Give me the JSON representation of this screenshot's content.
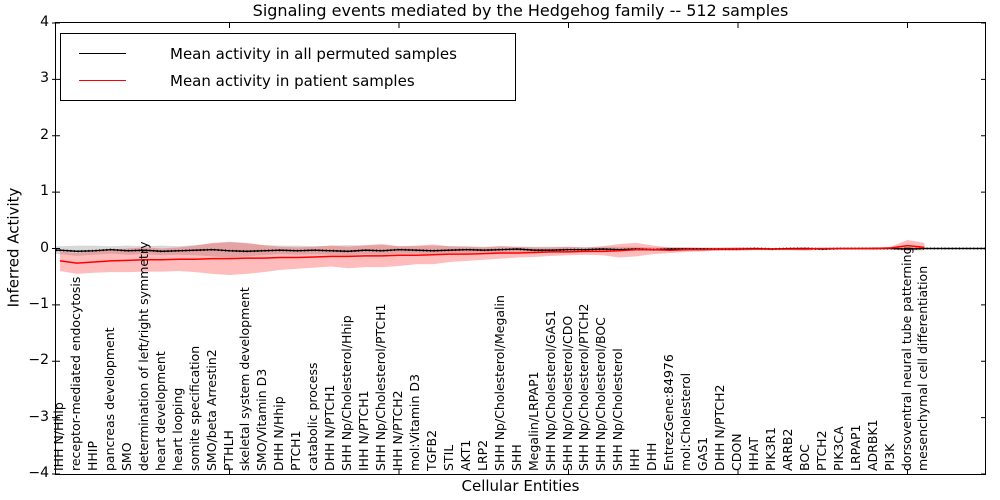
{
  "chart_data": {
    "type": "line",
    "title": "Signaling events mediated by the Hedgehog family -- 512 samples",
    "xlabel": "Cellular Entities",
    "ylabel": "Inferred Activity",
    "ylim": [
      -4,
      4
    ],
    "yticks": [
      4,
      3,
      2,
      1,
      0,
      -1,
      -2,
      -3,
      -4
    ],
    "xtick_marks_at_indices": [
      10,
      20,
      30,
      40,
      50
    ],
    "grid": false,
    "legend_position": "upper left",
    "zero_reference_line": {
      "y": 0,
      "style": "dotted",
      "color": "#000000"
    },
    "categories": [
      "IHH N/Hhip",
      "receptor-mediated endocytosis",
      "HHIP",
      "pancreas development",
      "SMO",
      "determination of left/right symmetry",
      "heart development",
      "heart looping",
      "somite specification",
      "SMO/beta Arrestin2",
      "PTHLH",
      "skeletal system development",
      "SMO/Vitamin D3",
      "DHH N/Hhip",
      "PTCH1",
      "catabolic process",
      "DHH N/PTCH1",
      "SHH Np/Cholesterol/Hhip",
      "IHH N/PTCH1",
      "SHH Np/Cholesterol/PTCH1",
      "IHH N/PTCH2",
      "mol:Vitamin D3",
      "TGFB2",
      "STIL",
      "AKT1",
      "LRP2",
      "SHH Np/Cholesterol/Megalin",
      "SHH",
      "Megalin/LRPAP1",
      "SHH Np/Cholesterol/GAS1",
      "SHH Np/Cholesterol/CDO",
      "SHH Np/Cholesterol/PTCH2",
      "SHH Np/Cholesterol/BOC",
      "SHH Np/Cholesterol",
      "IHH",
      "DHH",
      "EntrezGene:84976",
      "mol:Cholesterol",
      "GAS1",
      "DHH N/PTCH2",
      "CDON",
      "HHAT",
      "PIK3R1",
      "ARRB2",
      "BOC",
      "PTCH2",
      "PIK3CA",
      "LRPAP1",
      "ADRBK1",
      "PI3K",
      "dorsoventral neural tube patterning",
      "mesenchymal cell differentiation"
    ],
    "series": [
      {
        "name": "Mean activity in all permuted samples",
        "color": "#000000",
        "band_color": "#999999",
        "values": [
          -0.03,
          -0.05,
          -0.04,
          -0.02,
          -0.04,
          -0.03,
          -0.05,
          -0.04,
          -0.03,
          -0.02,
          -0.04,
          -0.05,
          -0.04,
          -0.03,
          -0.04,
          -0.03,
          -0.04,
          -0.05,
          -0.03,
          -0.04,
          -0.02,
          -0.03,
          -0.04,
          -0.03,
          -0.02,
          -0.03,
          -0.02,
          -0.01,
          -0.03,
          -0.03,
          -0.02,
          -0.02,
          -0.01,
          -0.02,
          -0.01,
          -0.02,
          -0.01,
          -0.01,
          -0.01,
          -0.01,
          -0.01,
          0,
          -0.01,
          0,
          0,
          -0.01,
          0,
          0,
          0,
          0,
          -0.01,
          0
        ],
        "band_high": [
          0.04,
          0.05,
          0.05,
          0.04,
          0.05,
          0.04,
          0.05,
          0.04,
          0.06,
          0.09,
          0.11,
          0.09,
          0.06,
          0.05,
          0.05,
          0.04,
          0.05,
          0.06,
          0.05,
          0.06,
          0.04,
          0.04,
          0.05,
          0.04,
          0.04,
          0.03,
          0.04,
          0.03,
          0.03,
          0.03,
          0.03,
          0.02,
          0.03,
          0.03,
          0.03,
          0.02,
          0.02,
          0.02,
          0.02,
          0.02,
          0.02,
          0.02,
          0.01,
          0.01,
          0.02,
          0.01,
          0.01,
          0.01,
          0.02,
          0.01,
          0.02,
          0.02
        ],
        "band_low": [
          -0.1,
          -0.13,
          -0.11,
          -0.09,
          -0.11,
          -0.1,
          -0.12,
          -0.11,
          -0.12,
          -0.14,
          -0.16,
          -0.14,
          -0.12,
          -0.1,
          -0.11,
          -0.1,
          -0.11,
          -0.12,
          -0.1,
          -0.11,
          -0.09,
          -0.09,
          -0.1,
          -0.08,
          -0.08,
          -0.07,
          -0.07,
          -0.06,
          -0.07,
          -0.06,
          -0.06,
          -0.05,
          -0.05,
          -0.05,
          -0.04,
          -0.04,
          -0.04,
          -0.03,
          -0.03,
          -0.03,
          -0.03,
          -0.02,
          -0.02,
          -0.02,
          -0.02,
          -0.02,
          -0.01,
          -0.01,
          -0.02,
          -0.01,
          -0.02,
          -0.02
        ]
      },
      {
        "name": "Mean activity in patient samples",
        "color": "#ff0000",
        "band_color": "#ff3333",
        "values": [
          -0.22,
          -0.26,
          -0.24,
          -0.22,
          -0.21,
          -0.2,
          -0.2,
          -0.19,
          -0.19,
          -0.18,
          -0.18,
          -0.17,
          -0.17,
          -0.16,
          -0.16,
          -0.15,
          -0.14,
          -0.14,
          -0.13,
          -0.13,
          -0.12,
          -0.12,
          -0.11,
          -0.1,
          -0.1,
          -0.09,
          -0.08,
          -0.08,
          -0.07,
          -0.06,
          -0.06,
          -0.05,
          -0.05,
          -0.04,
          -0.02,
          -0.02,
          -0.03,
          -0.02,
          -0.02,
          -0.01,
          -0.01,
          -0.01,
          -0.01,
          -0.01,
          -0.01,
          0,
          0,
          0,
          0,
          0.01,
          0.05,
          0.02
        ],
        "band_high": [
          -0.05,
          -0.08,
          -0.05,
          -0.02,
          0,
          0.02,
          0,
          0.02,
          0.05,
          0.1,
          0.12,
          0.1,
          0.06,
          0.03,
          0.02,
          0.03,
          0.05,
          0.03,
          0.06,
          0.08,
          0.04,
          0.05,
          0.07,
          0.04,
          0.03,
          0.02,
          0.04,
          0.03,
          0.02,
          0.02,
          0.03,
          0.02,
          0.04,
          0.08,
          0.1,
          0.05,
          0.02,
          0.02,
          0.01,
          0.01,
          0.02,
          0.01,
          0.01,
          0.01,
          0.02,
          0.01,
          0.01,
          0.01,
          0.02,
          0.03,
          0.15,
          0.1
        ],
        "band_low": [
          -0.4,
          -0.45,
          -0.43,
          -0.42,
          -0.42,
          -0.41,
          -0.41,
          -0.4,
          -0.42,
          -0.45,
          -0.47,
          -0.45,
          -0.42,
          -0.38,
          -0.36,
          -0.34,
          -0.32,
          -0.35,
          -0.33,
          -0.33,
          -0.31,
          -0.28,
          -0.28,
          -0.24,
          -0.22,
          -0.2,
          -0.18,
          -0.16,
          -0.15,
          -0.13,
          -0.12,
          -0.11,
          -0.12,
          -0.16,
          -0.14,
          -0.1,
          -0.08,
          -0.06,
          -0.05,
          -0.04,
          -0.04,
          -0.03,
          -0.03,
          -0.03,
          -0.04,
          -0.02,
          -0.02,
          -0.02,
          -0.02,
          -0.02,
          -0.04,
          -0.03
        ]
      }
    ]
  }
}
